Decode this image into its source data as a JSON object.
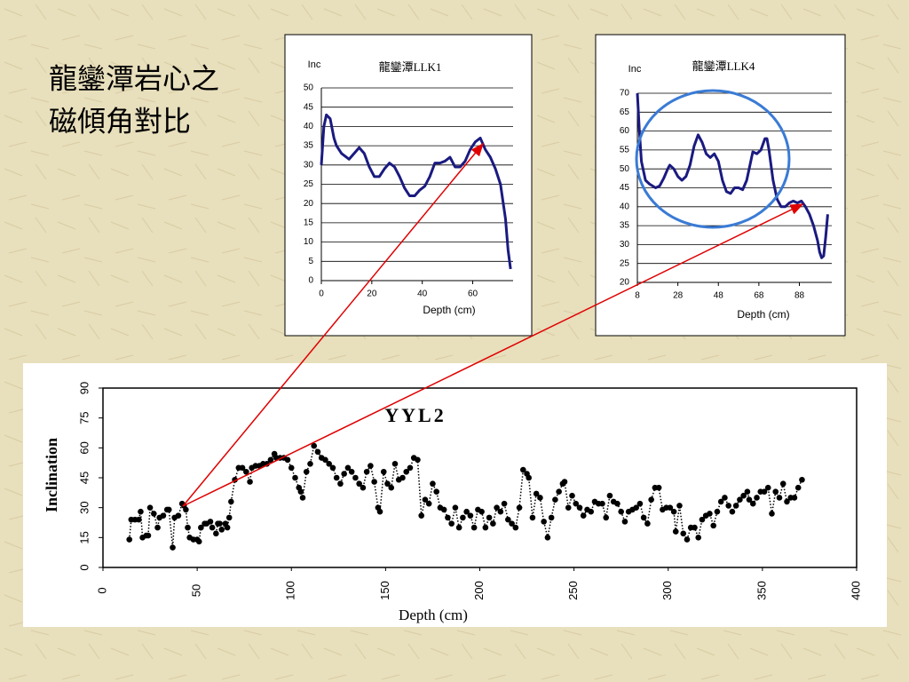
{
  "slide": {
    "title_lines": [
      "龍鑾潭岩心之",
      "磁傾角對比"
    ]
  },
  "chart_data": [
    {
      "type": "line",
      "title": "龍鑾潭LLK1",
      "ylabel": "Inc",
      "xlabel": "Depth (cm)",
      "color": "#1a1a80",
      "grid": true,
      "xlim": [
        0,
        76
      ],
      "xticks": [
        0,
        20,
        40,
        60
      ],
      "ylim": [
        0,
        50
      ],
      "yticks": [
        0,
        5,
        10,
        15,
        20,
        25,
        30,
        35,
        40,
        45,
        50
      ],
      "x": [
        0,
        1,
        2,
        3.5,
        5,
        6,
        8,
        11,
        13,
        15,
        17,
        19,
        21,
        23,
        25,
        27,
        29,
        31,
        33,
        35,
        37,
        39,
        41,
        43,
        45,
        47,
        49,
        51,
        53,
        55,
        57,
        59,
        61,
        63,
        65,
        67,
        69,
        71,
        73,
        74,
        75
      ],
      "values": [
        30,
        40,
        43,
        42,
        37,
        35,
        33,
        31.5,
        33,
        34.5,
        33,
        29.5,
        27,
        27,
        29,
        30.5,
        29.5,
        27,
        24,
        22,
        22,
        23.5,
        24.5,
        27,
        30.5,
        30.5,
        31,
        32,
        29.5,
        29.5,
        31,
        34,
        36,
        37,
        34,
        32,
        29,
        25,
        16,
        8,
        3
      ]
    },
    {
      "type": "line",
      "title": "龍鑾潭LLK4",
      "ylabel": "Inc",
      "xlabel": "Depth (cm)",
      "color": "#1a1a80",
      "grid": true,
      "xlim": [
        8,
        104
      ],
      "xticks": [
        8,
        28,
        48,
        68,
        88
      ],
      "ylim": [
        20,
        70
      ],
      "yticks": [
        20,
        25,
        30,
        35,
        40,
        45,
        50,
        55,
        60,
        65,
        70
      ],
      "x": [
        8,
        9,
        10,
        12,
        14,
        17,
        19,
        21,
        23,
        24,
        26,
        28,
        30,
        32,
        34,
        36,
        38,
        40,
        42,
        44,
        46,
        48,
        50,
        52,
        54,
        56,
        58,
        60,
        62,
        64,
        65,
        67,
        69,
        71,
        72,
        73,
        75,
        77,
        79,
        81,
        83,
        85,
        87,
        89,
        91,
        93,
        95,
        97,
        98,
        99,
        100,
        101,
        102
      ],
      "values": [
        70,
        60,
        52,
        47,
        46,
        45,
        45.5,
        47.5,
        50,
        51,
        50,
        48,
        47,
        48,
        51,
        56,
        59,
        57,
        54,
        53,
        54,
        52,
        47,
        44,
        43.5,
        45,
        45,
        44.5,
        47,
        52,
        54.5,
        54,
        55,
        58,
        58,
        55,
        47,
        42,
        40,
        40,
        41,
        41.5,
        41,
        41.5,
        40,
        38,
        35,
        31,
        28,
        26.5,
        27,
        32,
        38
      ]
    },
    {
      "type": "line",
      "title": "YYL2",
      "ylabel": "Inclination",
      "xlabel": "Depth (cm)",
      "color": "#000000",
      "grid": false,
      "markers": true,
      "line_style": "dotted",
      "xlim": [
        0,
        400
      ],
      "xticks": [
        0,
        50,
        100,
        150,
        200,
        250,
        300,
        350,
        400
      ],
      "ylim": [
        0,
        90
      ],
      "yticks": [
        0,
        15,
        30,
        45,
        60,
        75,
        90
      ],
      "x": [
        14,
        15,
        17,
        19,
        20,
        21,
        23,
        24,
        25,
        27,
        29,
        30,
        32,
        34,
        35,
        37,
        38,
        40,
        42,
        43,
        44,
        45,
        46,
        48,
        50,
        51,
        52,
        54,
        55,
        57,
        58,
        60,
        61,
        62,
        63,
        65,
        66,
        67,
        68,
        70,
        72,
        74,
        76,
        78,
        79,
        81,
        83,
        85,
        87,
        89,
        91,
        92,
        94,
        96,
        98,
        100,
        102,
        104,
        105,
        106,
        108,
        110,
        112,
        114,
        116,
        118,
        120,
        122,
        124,
        126,
        128,
        130,
        132,
        134,
        136,
        138,
        140,
        142,
        144,
        146,
        147,
        149,
        151,
        153,
        155,
        157,
        159,
        161,
        163,
        165,
        167,
        169,
        171,
        173,
        175,
        177,
        179,
        181,
        183,
        185,
        187,
        189,
        191,
        193,
        195,
        197,
        199,
        201,
        203,
        205,
        207,
        209,
        211,
        213,
        215,
        217,
        219,
        221,
        223,
        225,
        226,
        228,
        230,
        232,
        234,
        236,
        238,
        240,
        242,
        244,
        245,
        247,
        249,
        251,
        253,
        255,
        257,
        259,
        261,
        263,
        265,
        267,
        269,
        271,
        273,
        275,
        277,
        279,
        281,
        283,
        285,
        287,
        289,
        291,
        293,
        295,
        297,
        299,
        301,
        303,
        304,
        306,
        308,
        310,
        312,
        314,
        316,
        318,
        320,
        322,
        324,
        326,
        328,
        330,
        332,
        334,
        336,
        338,
        340,
        342,
        343,
        345,
        347,
        349,
        351,
        353,
        355,
        357,
        359,
        361,
        363,
        365,
        367,
        369,
        371
      ],
      "values": [
        14,
        24,
        24,
        24,
        28,
        15,
        16,
        16,
        30,
        27,
        20,
        25,
        26,
        29,
        29,
        10,
        25,
        26,
        32,
        31,
        29,
        20,
        15,
        14,
        14,
        13,
        20,
        22,
        22,
        23,
        20,
        17,
        22,
        22,
        19,
        22,
        20,
        25,
        33,
        44,
        50,
        50,
        48,
        43,
        50,
        51,
        51,
        52,
        52,
        54,
        57,
        55,
        55,
        55,
        54,
        50,
        45,
        40,
        38,
        35,
        48,
        52,
        61,
        58,
        55,
        54,
        52,
        50,
        45,
        42,
        47,
        50,
        48,
        45,
        42,
        40,
        48,
        51,
        43,
        30,
        28,
        48,
        42,
        40,
        52,
        44,
        45,
        48,
        50,
        55,
        54,
        26,
        34,
        32,
        42,
        38,
        30,
        29,
        25,
        22,
        30,
        20,
        25,
        28,
        26,
        20,
        29,
        28,
        20,
        25,
        22,
        30,
        28,
        32,
        24,
        22,
        20,
        30,
        49,
        47,
        45,
        25,
        37,
        35,
        23,
        15,
        25,
        34,
        38,
        42,
        43,
        30,
        36,
        32,
        30,
        26,
        29,
        28,
        33,
        32,
        32,
        25,
        36,
        33,
        32,
        28,
        23,
        28,
        29,
        30,
        32,
        25,
        22,
        34,
        40,
        40,
        29,
        30,
        30,
        28,
        18,
        31,
        17,
        14,
        20,
        20,
        15,
        24,
        26,
        27,
        21,
        28,
        33,
        35,
        31,
        28,
        31,
        34,
        36,
        38,
        34,
        32,
        35,
        38,
        38,
        40,
        27,
        38,
        35,
        42,
        33,
        35,
        35,
        40,
        44
      ]
    }
  ]
}
